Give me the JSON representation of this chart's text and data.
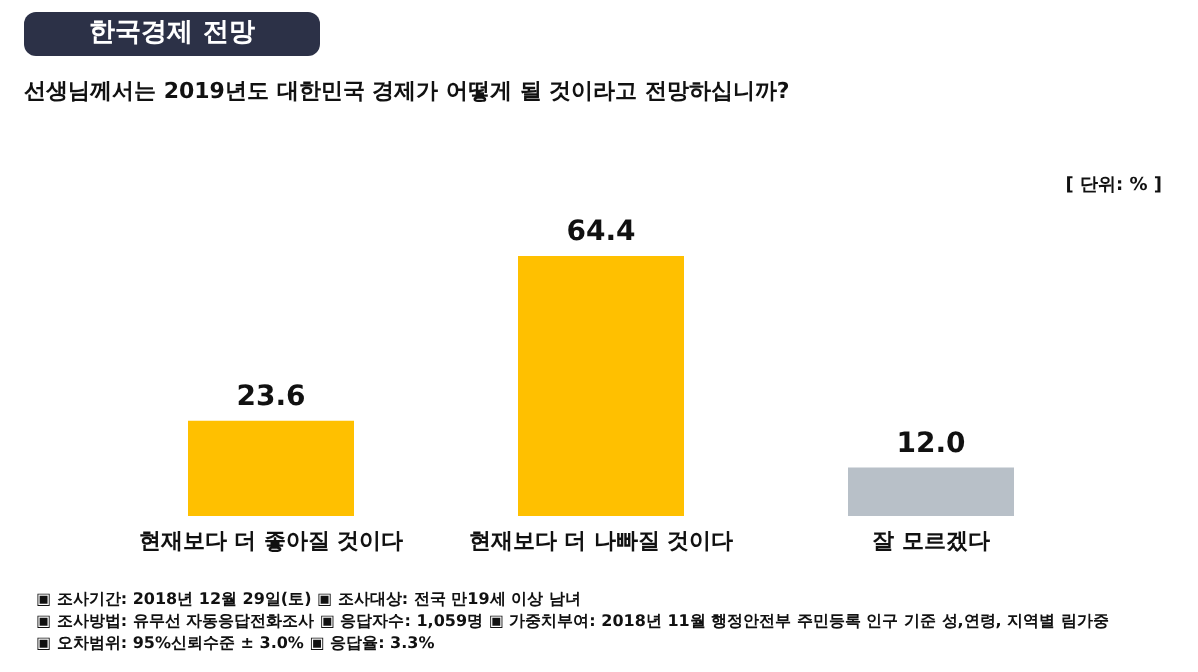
{
  "chart_data": {
    "type": "bar",
    "title": "한국경제 전망",
    "subtitle": "선생님께서는 2019년도 대한민국 경제가 어떻게 될 것이라고 전망하십니까?",
    "categories": [
      "현재보다 더 좋아질 것이다",
      "현재보다 더 나빠질 것이다",
      "잘 모르겠다"
    ],
    "values": [
      23.6,
      64.4,
      12.0
    ],
    "colors": [
      "#ffc000",
      "#ffc000",
      "#b8c0c8"
    ],
    "value_labels": [
      "23.6",
      "64.4",
      "12.0"
    ],
    "annotations": [
      "[ 단위: % ]",
      "▣ 조사기간: 2018년 12월 29일(토) ▣ 조사대상: 전국 만19세 이상 남녀",
      "▣ 조사방법: 유무선 자동응답전화조사 ▣ 응답자수: 1,059명 ▣ 가중치부여: 2018년 11월 행정안전부 주민등록 인구 기준 성,연령, 지역별 림가중",
      "▣ 오차범위: 95%신뢰수준 ± 3.0% ▣ 응답율: 3.3%"
    ]
  }
}
